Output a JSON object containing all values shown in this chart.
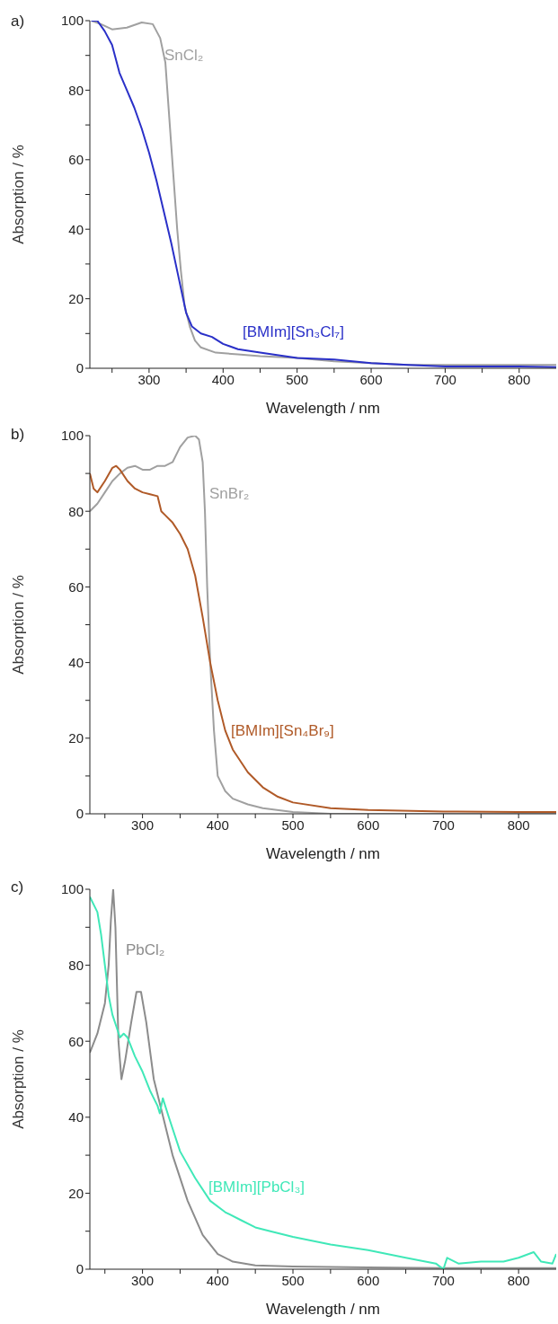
{
  "chart_data": [
    {
      "type": "line",
      "annotations": [
        "a)"
      ],
      "xlabel": "Wavelength / nm",
      "ylabel": "Absorption / %",
      "xlim": [
        220,
        850
      ],
      "ylim": [
        0,
        100
      ],
      "xticks": [
        {
          "value": 250,
          "label": null
        },
        300,
        {
          "value": 350,
          "label": null
        },
        400,
        {
          "value": 450,
          "label": null
        },
        500,
        {
          "value": 550,
          "label": null
        },
        600,
        {
          "value": 650,
          "label": null
        },
        700,
        {
          "value": 750,
          "label": null
        },
        800
      ],
      "yticks": [
        0,
        {
          "value": 10,
          "label": null
        },
        20,
        {
          "value": 30,
          "label": null
        },
        40,
        {
          "value": 50,
          "label": null
        },
        60,
        {
          "value": 70,
          "label": null
        },
        80,
        {
          "value": 90,
          "label": null
        },
        100
      ],
      "series": [
        {
          "name": "SnCl₂",
          "color": "#a0a0a0",
          "x": [
            222,
            235,
            250,
            270,
            290,
            305,
            315,
            322,
            328,
            333,
            338,
            343,
            348,
            355,
            362,
            370,
            390,
            420,
            450,
            500,
            550,
            600,
            650,
            700,
            750,
            800,
            850
          ],
          "values": [
            100,
            99,
            97.5,
            98,
            99.5,
            99,
            95,
            88,
            70,
            55,
            40,
            28,
            18,
            12,
            8,
            6,
            4.5,
            4,
            3.5,
            3,
            2,
            1.5,
            1,
            1,
            1,
            1,
            1
          ]
        },
        {
          "name": "[BMIm][Sn₃Cl₇]",
          "color": "#2a30c8",
          "x": [
            222,
            230,
            240,
            250,
            260,
            270,
            280,
            290,
            300,
            310,
            320,
            330,
            340,
            350,
            358,
            370,
            385,
            400,
            420,
            450,
            500,
            550,
            600,
            650,
            700,
            750,
            800,
            850
          ],
          "values": [
            100,
            100,
            97,
            93,
            85,
            80,
            75,
            69,
            62,
            54,
            45,
            36,
            26,
            16,
            12,
            10,
            9,
            7,
            5.5,
            4.5,
            3,
            2.5,
            1.5,
            1,
            0.5,
            0.5,
            0.5,
            0.3
          ]
        }
      ]
    },
    {
      "type": "line",
      "annotations": [
        "b)"
      ],
      "xlabel": "Wavelength / nm",
      "ylabel": "Absorption / %",
      "xlim": [
        230,
        850
      ],
      "ylim": [
        0,
        100
      ],
      "xticks": [
        {
          "value": 250,
          "label": null
        },
        300,
        {
          "value": 350,
          "label": null
        },
        400,
        {
          "value": 450,
          "label": null
        },
        500,
        {
          "value": 550,
          "label": null
        },
        600,
        {
          "value": 650,
          "label": null
        },
        700,
        {
          "value": 750,
          "label": null
        },
        800
      ],
      "yticks": [
        0,
        {
          "value": 10,
          "label": null
        },
        20,
        {
          "value": 30,
          "label": null
        },
        40,
        {
          "value": 50,
          "label": null
        },
        60,
        {
          "value": 70,
          "label": null
        },
        80,
        {
          "value": 90,
          "label": null
        },
        100
      ],
      "series": [
        {
          "name": "SnBr₂",
          "color": "#a0a0a0",
          "x": [
            230,
            240,
            250,
            260,
            270,
            280,
            290,
            300,
            310,
            320,
            330,
            340,
            350,
            360,
            370,
            375,
            380,
            383,
            386,
            390,
            395,
            400,
            410,
            420,
            440,
            460,
            500,
            550,
            850
          ],
          "values": [
            80,
            82,
            85,
            88,
            90,
            91.5,
            92,
            91,
            91,
            92,
            92,
            93,
            97,
            99.5,
            100,
            99,
            93,
            80,
            60,
            40,
            22,
            10,
            6,
            4,
            2.5,
            1.5,
            0.5,
            0,
            0
          ]
        },
        {
          "name": "[BMIm][Sn₄Br₉]",
          "color": "#b05a28",
          "x": [
            230,
            235,
            240,
            250,
            260,
            265,
            270,
            280,
            290,
            300,
            310,
            320,
            325,
            330,
            340,
            350,
            360,
            370,
            380,
            390,
            400,
            410,
            420,
            440,
            460,
            480,
            500,
            550,
            600,
            700,
            800,
            850
          ],
          "values": [
            90,
            86,
            85,
            88,
            91.5,
            92,
            91,
            88,
            86,
            85,
            84.5,
            84,
            80,
            79,
            77,
            74,
            70,
            63,
            52,
            40,
            30,
            22,
            17,
            11,
            7,
            4.5,
            3,
            1.5,
            1,
            0.6,
            0.5,
            0.5
          ]
        }
      ]
    },
    {
      "type": "line",
      "annotations": [
        "c)"
      ],
      "xlabel": "Wavelength / nm",
      "ylabel": "Absorption / %",
      "xlim": [
        230,
        850
      ],
      "ylim": [
        0,
        100
      ],
      "xticks": [
        {
          "value": 250,
          "label": null
        },
        300,
        {
          "value": 350,
          "label": null
        },
        400,
        {
          "value": 450,
          "label": null
        },
        500,
        {
          "value": 550,
          "label": null
        },
        600,
        {
          "value": 650,
          "label": null
        },
        700,
        {
          "value": 750,
          "label": null
        },
        800
      ],
      "yticks": [
        0,
        {
          "value": 10,
          "label": null
        },
        20,
        {
          "value": 30,
          "label": null
        },
        40,
        {
          "value": 50,
          "label": null
        },
        60,
        {
          "value": 70,
          "label": null
        },
        80,
        {
          "value": 90,
          "label": null
        },
        100
      ],
      "series": [
        {
          "name": "PbCl₂",
          "color": "#8c8c8c",
          "x": [
            230,
            240,
            250,
            255,
            258,
            261,
            264,
            268,
            272,
            277,
            285,
            292,
            298,
            305,
            315,
            325,
            340,
            360,
            380,
            400,
            420,
            450,
            500,
            600,
            700,
            850
          ],
          "values": [
            57,
            62,
            70,
            80,
            92,
            100,
            90,
            60,
            50,
            55,
            65,
            73,
            73,
            65,
            50,
            42,
            30,
            18,
            9,
            4,
            2,
            1,
            0.7,
            0.5,
            0.3,
            0.3
          ]
        },
        {
          "name": "[BMIm][PbCl₃]",
          "color": "#40e8b8",
          "x": [
            230,
            240,
            245,
            250,
            255,
            260,
            265,
            270,
            275,
            280,
            290,
            300,
            310,
            320,
            323,
            327,
            335,
            350,
            370,
            390,
            410,
            430,
            450,
            470,
            500,
            550,
            600,
            650,
            690,
            700,
            705,
            720,
            750,
            780,
            800,
            820,
            830,
            845,
            850
          ],
          "values": [
            98,
            94,
            88,
            80,
            72,
            67,
            64,
            61,
            62,
            61,
            56,
            52,
            47,
            43,
            41,
            45,
            40,
            31,
            24,
            18,
            15,
            13,
            11,
            10,
            8.5,
            6.5,
            5,
            3,
            1.5,
            0,
            3,
            1.5,
            2,
            2,
            3,
            4.5,
            2,
            1.5,
            4
          ]
        }
      ]
    }
  ]
}
